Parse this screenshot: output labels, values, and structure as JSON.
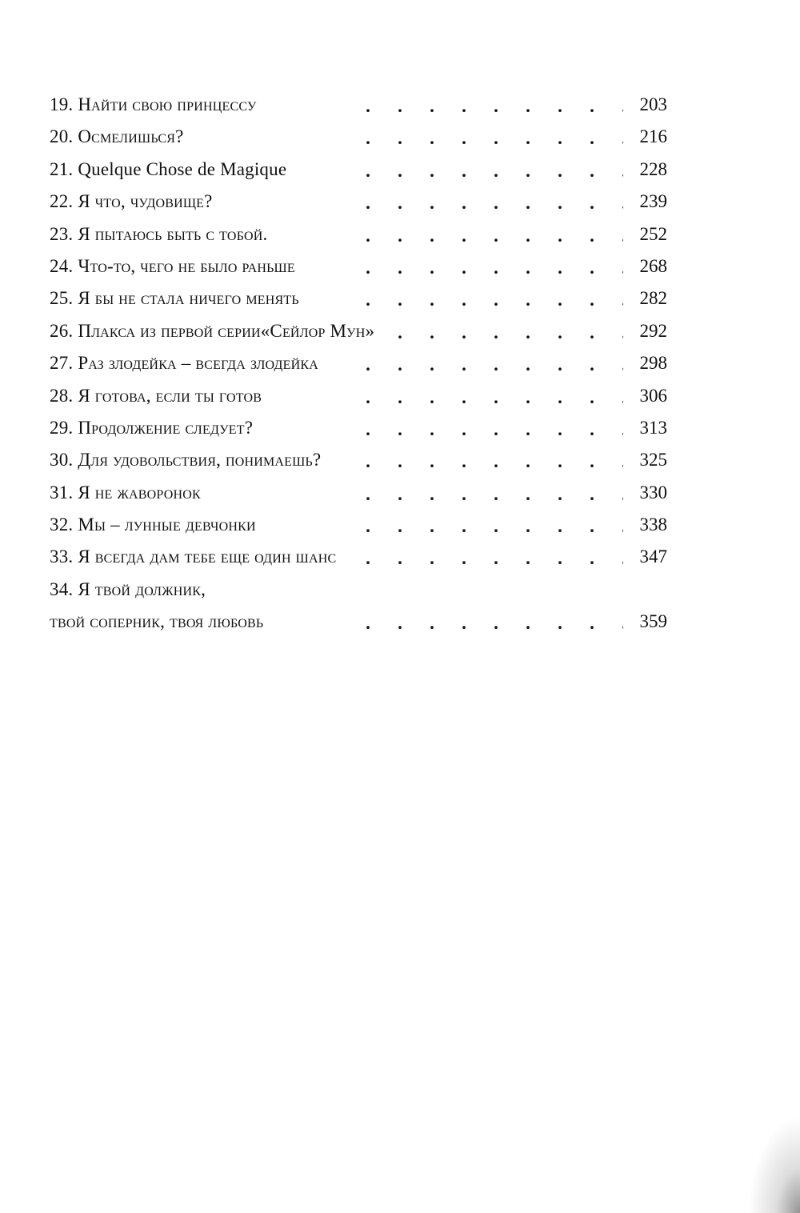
{
  "toc": [
    {
      "num": "19.",
      "title": "Найти свою принцессу",
      "page": "203"
    },
    {
      "num": "20.",
      "title": "Осмелишься?",
      "page": "216"
    },
    {
      "num": "21.",
      "title": "Quelque Chose de Magique",
      "page": "228",
      "plain": true
    },
    {
      "num": "22.",
      "title": "Я что, чудовище?",
      "page": "239"
    },
    {
      "num": "23.",
      "title": "Я пытаюсь быть с тобой.",
      "page": "252"
    },
    {
      "num": "24.",
      "title": "Что-то, чего не было раньше",
      "page": "268"
    },
    {
      "num": "25.",
      "title": "Я бы не стала ничего менять",
      "page": "282"
    },
    {
      "num": "26.",
      "title": "Плакса из первой серии«Сейлор Мун»",
      "page": "292"
    },
    {
      "num": "27.",
      "title": "Раз злодейка – всегда злодейка",
      "page": "298"
    },
    {
      "num": "28.",
      "title": "Я готова, если ты готов",
      "page": "306"
    },
    {
      "num": "29.",
      "title": "Продолжение следует?",
      "page": "313"
    },
    {
      "num": "30.",
      "title": "Для удовольствия, понимаешь?",
      "page": "325"
    },
    {
      "num": "31.",
      "title": "Я не жаворонок",
      "page": "330"
    },
    {
      "num": "32.",
      "title": "Мы – лунные девчонки",
      "page": "338"
    },
    {
      "num": "33.",
      "title": "Я всегда дам тебе еще один шанс",
      "page": "347"
    },
    {
      "num": "34.",
      "title": "Я твой должник,",
      "page": ""
    },
    {
      "num": "",
      "title": "твой соперник, твоя любовь",
      "page": "359"
    }
  ]
}
